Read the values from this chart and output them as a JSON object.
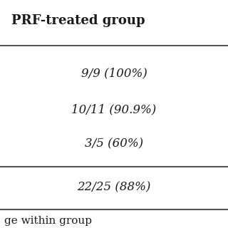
{
  "header": "PRF-treated group",
  "rows": [
    "9/9 (100%)",
    "10/11 (90.9%)",
    "3/5 (60%)",
    "22/25 (88%)"
  ],
  "footer": "ge within group",
  "bg_color": "#ffffff",
  "text_color": "#1a1a1a",
  "header_fontsize": 13,
  "cell_fontsize": 12,
  "footer_fontsize": 11,
  "line_color": "#555555"
}
